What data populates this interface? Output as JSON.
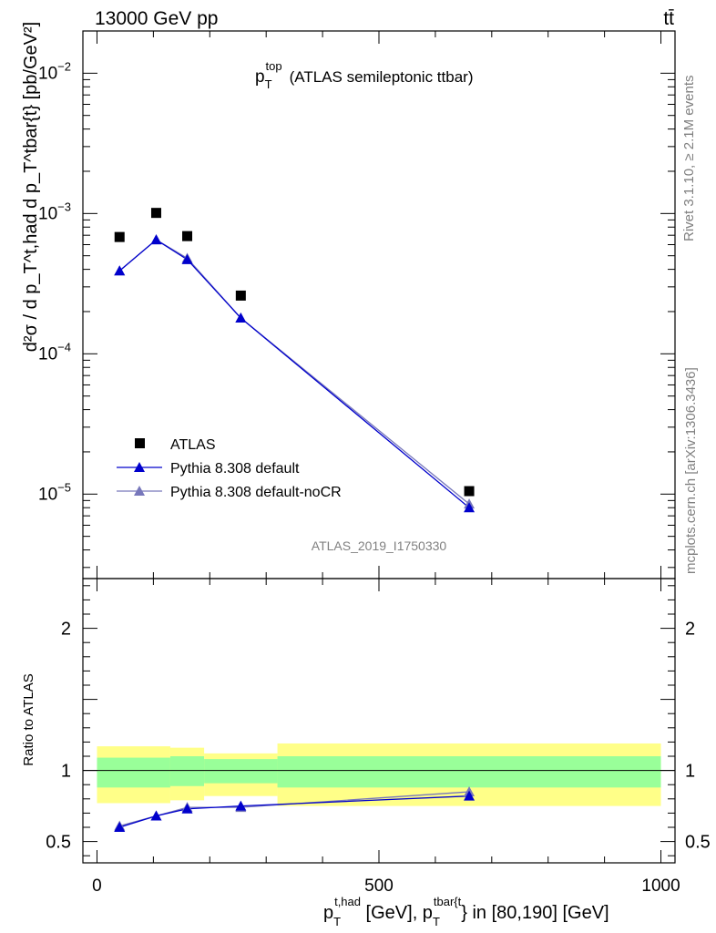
{
  "header": {
    "energy_label": "13000 GeV pp",
    "process_label": "tt̄"
  },
  "side_labels": {
    "rivet": "Rivet 3.1.10, ≥ 2.1M events",
    "mcplots": "mcplots.cern.ch [arXiv:1306.3436]"
  },
  "analysis_id": "ATLAS_2019_I1750330",
  "colors": {
    "data": "#000000",
    "default": "#0000cc",
    "nocr": "#7777bb",
    "band_inner": "#99ff99",
    "band_outer": "#ffff88"
  },
  "chart_data": [
    {
      "type": "scatter",
      "title": "p_T^top (ATLAS semileptonic ttbar)",
      "title_main": "p",
      "title_sub": "T",
      "title_sup": "top",
      "title_rest": "(ATLAS semileptonic ttbar)",
      "ylabel": "d²σ / d p_T^t,had d p_T^tbar{t} [pb/GeV²]",
      "yscale": "log",
      "ylim": [
        2.5e-06,
        0.02
      ],
      "xlim": [
        -25,
        1025
      ],
      "yticks": [
        {
          "value": 0.01,
          "base": "10",
          "exp": "−2"
        },
        {
          "value": 0.001,
          "base": "10",
          "exp": "−3"
        },
        {
          "value": 0.0001,
          "base": "10",
          "exp": "−4"
        },
        {
          "value": 1e-05,
          "base": "10",
          "exp": "−5"
        }
      ],
      "legend_position": "bottom-left",
      "series": [
        {
          "name": "ATLAS",
          "marker": "square",
          "x": [
            40,
            105,
            160,
            255,
            660
          ],
          "y": [
            0.00068,
            0.00101,
            0.00069,
            0.00026,
            1.05e-05
          ]
        },
        {
          "name": "Pythia 8.308 default",
          "marker": "triangle",
          "x": [
            40,
            105,
            160,
            255,
            660
          ],
          "y": [
            0.00039,
            0.00065,
            0.00047,
            0.00018,
            8e-06
          ]
        },
        {
          "name": "Pythia 8.308 default-noCR",
          "marker": "triangle",
          "x": [
            40,
            105,
            160,
            255,
            660
          ],
          "y": [
            0.00039,
            0.00065,
            0.00048,
            0.00018,
            8.5e-06
          ]
        }
      ]
    },
    {
      "type": "line",
      "ylabel": "Ratio to ATLAS",
      "xlabel": "p_T^t,had [GeV], p_T^tbar{t} in [80,190] [GeV]",
      "xlabel_parts": {
        "p1": "p",
        "sub1": "T",
        "sup1": "t,had",
        "mid": " [GeV], p",
        "sub2": "T",
        "sup2": "tbar{t",
        "end": "} in [80,190] [GeV]"
      },
      "xlim": [
        -25,
        1025
      ],
      "ylim": [
        0.35,
        2.35
      ],
      "xticks": [
        0,
        500,
        1000
      ],
      "yticks": [
        0.5,
        1,
        2
      ],
      "bands": [
        {
          "x0": 0,
          "x1": 130,
          "inner": [
            0.88,
            1.09
          ],
          "outer": [
            0.77,
            1.17
          ]
        },
        {
          "x0": 130,
          "x1": 190,
          "inner": [
            0.89,
            1.1
          ],
          "outer": [
            0.79,
            1.16
          ]
        },
        {
          "x0": 190,
          "x1": 320,
          "inner": [
            0.91,
            1.08
          ],
          "outer": [
            0.82,
            1.12
          ]
        },
        {
          "x0": 320,
          "x1": 1000,
          "inner": [
            0.88,
            1.1
          ],
          "outer": [
            0.75,
            1.19
          ]
        }
      ],
      "series": [
        {
          "name": "Pythia 8.308 default",
          "x": [
            40,
            105,
            160,
            255,
            660
          ],
          "y": [
            0.6,
            0.68,
            0.73,
            0.75,
            0.82
          ]
        },
        {
          "name": "Pythia 8.308 default-noCR",
          "x": [
            40,
            105,
            160,
            255,
            660
          ],
          "y": [
            0.61,
            0.68,
            0.74,
            0.74,
            0.85
          ]
        }
      ]
    }
  ]
}
